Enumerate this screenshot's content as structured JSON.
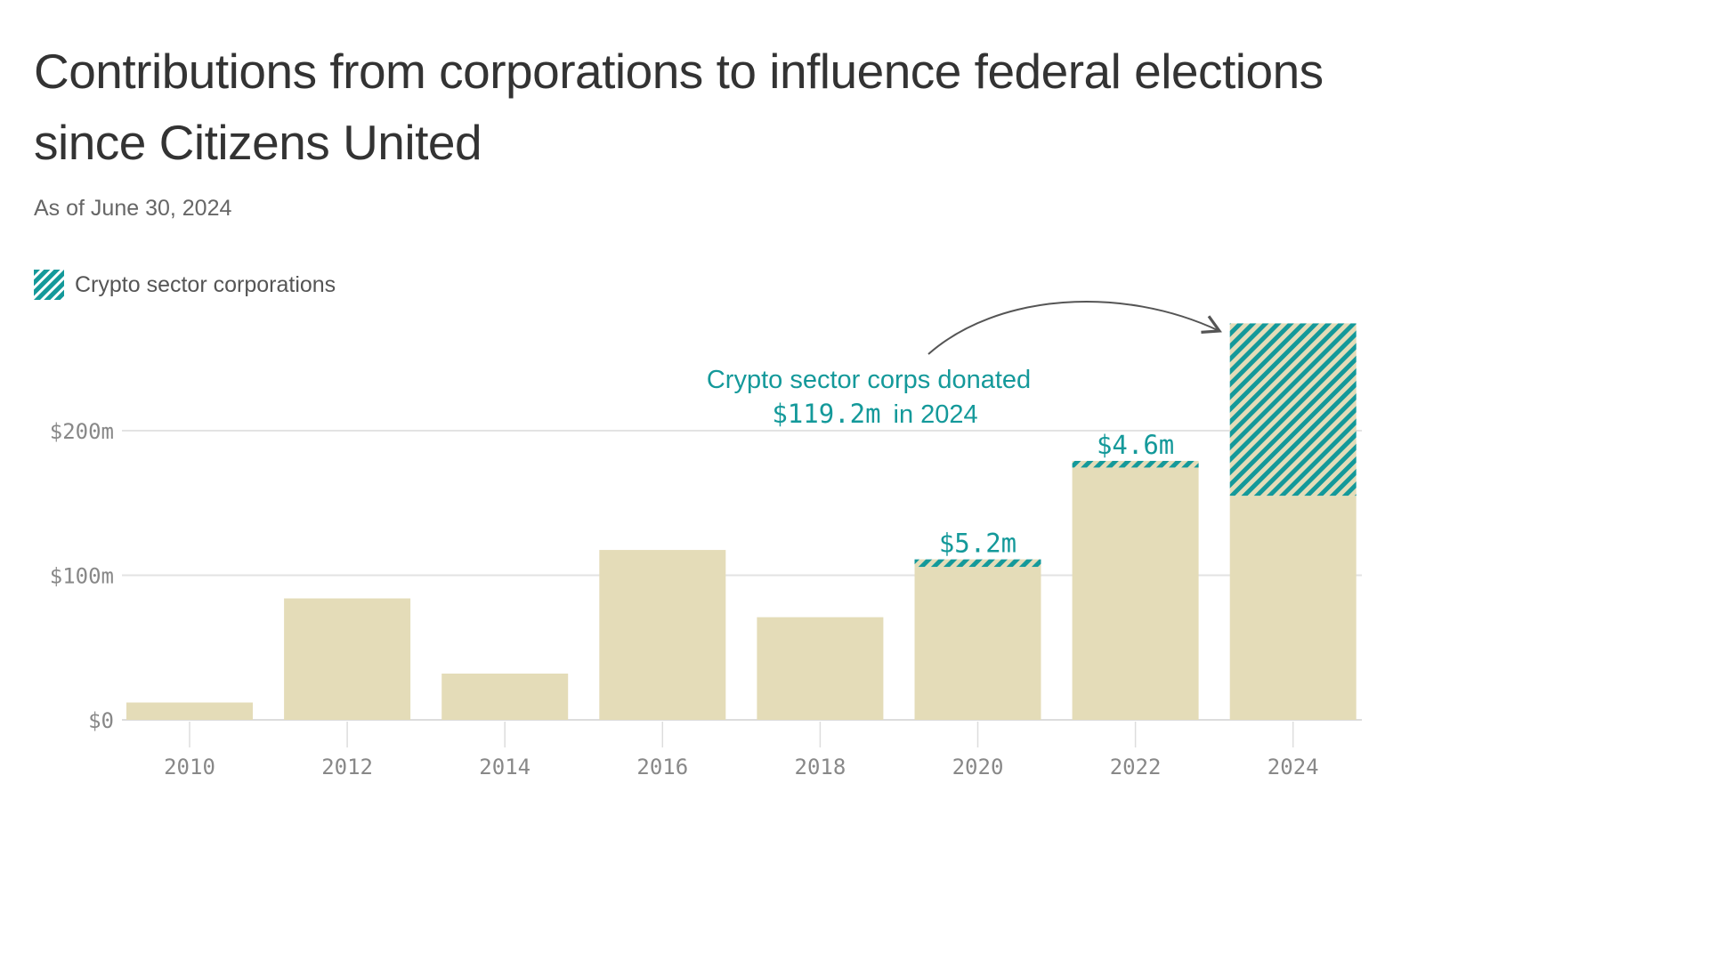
{
  "title": "Contributions from corporations to influence federal elections since Citizens United",
  "subtitle": "As of June 30, 2024",
  "legend": {
    "label": "Crypto sector corporations"
  },
  "colors": {
    "base": "#e4dcb8",
    "crypto": "#14999a",
    "grid": "#e3e3e3",
    "text": "#333333"
  },
  "annotation": {
    "line1": "Crypto sector corps donated",
    "amount": "$119.2m",
    "suffix": "in 2024"
  },
  "chart_data": {
    "type": "bar",
    "stacked": true,
    "categories": [
      "2010",
      "2012",
      "2014",
      "2016",
      "2018",
      "2020",
      "2022",
      "2024"
    ],
    "series": [
      {
        "values": [
          12,
          84,
          32,
          117.5,
          71,
          105.8,
          174.5,
          155
        ]
      },
      {
        "name": "Crypto sector corporations",
        "values": [
          0,
          0,
          0,
          0,
          0,
          5.2,
          4.6,
          119.2
        ]
      }
    ],
    "data_labels": {
      "2020": "$5.2m",
      "2022": "$4.6m"
    },
    "yticks": [
      {
        "value": 0,
        "label": "$0"
      },
      {
        "value": 100,
        "label": "$100m"
      },
      {
        "value": 200,
        "label": "$200m"
      }
    ],
    "ylim": [
      0,
      280
    ],
    "grid": true,
    "legend_position": "top-left"
  }
}
